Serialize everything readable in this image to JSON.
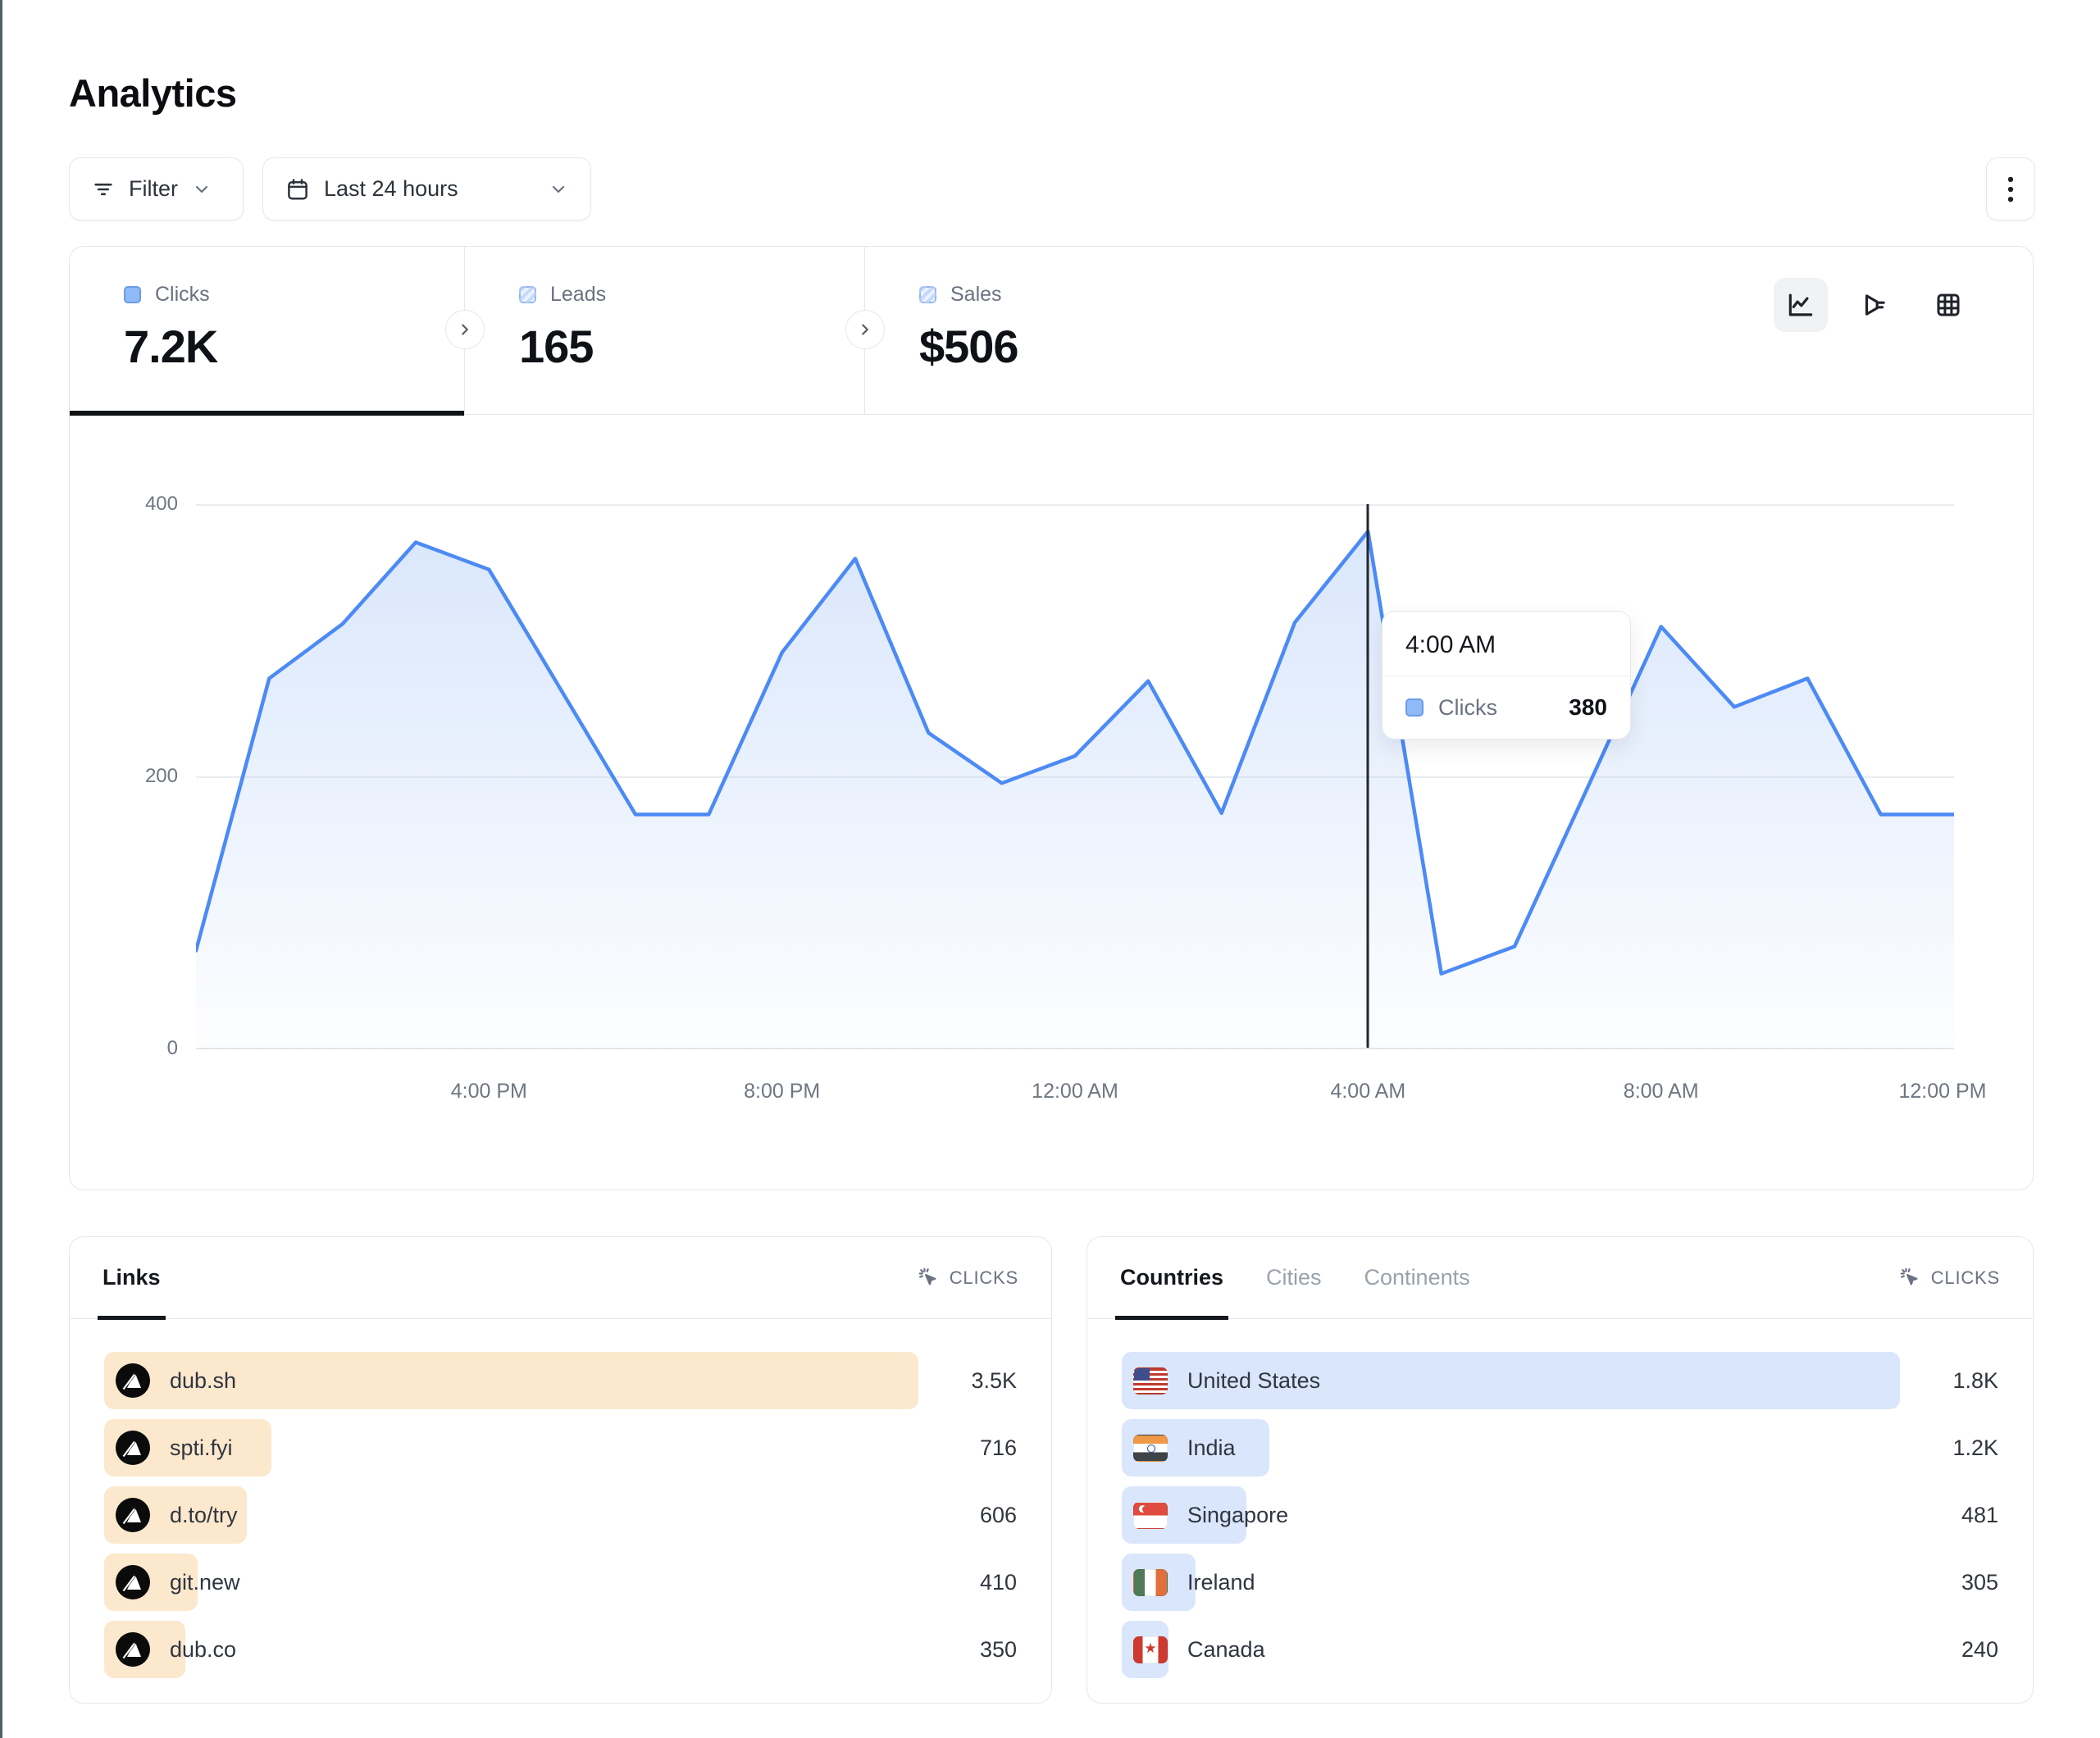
{
  "page": {
    "title": "Analytics"
  },
  "toolbar": {
    "filter_label": "Filter",
    "date_range_label": "Last 24 hours",
    "icons": [
      "filter-lines-icon",
      "calendar-icon",
      "chevron-down-icon",
      "kebab-menu-icon"
    ]
  },
  "stats": {
    "tabs": [
      {
        "label": "Clicks",
        "value": "7.2K",
        "active": true
      },
      {
        "label": "Leads",
        "value": "165",
        "active": false
      },
      {
        "label": "Sales",
        "value": "$506",
        "active": false
      }
    ]
  },
  "chart_toolbar": {
    "icons": [
      "line-chart-icon",
      "funnel-chart-icon",
      "table-grid-icon"
    ],
    "active": "line-chart-icon"
  },
  "chart_data": {
    "type": "area",
    "series_name": "Clicks",
    "x_hours": [
      "12:00 PM",
      "1:00 PM",
      "2:00 PM",
      "3:00 PM",
      "4:00 PM",
      "5:00 PM",
      "6:00 PM",
      "7:00 PM",
      "8:00 PM",
      "9:00 PM",
      "10:00 PM",
      "11:00 PM",
      "12:00 AM",
      "1:00 AM",
      "2:00 AM",
      "3:00 AM",
      "4:00 AM",
      "5:00 AM",
      "6:00 AM",
      "7:00 AM",
      "8:00 AM",
      "9:00 AM",
      "10:00 AM",
      "11:00 AM",
      "12:00 PM"
    ],
    "values": [
      72,
      272,
      312,
      372,
      352,
      262,
      172,
      172,
      291,
      360,
      232,
      195,
      215,
      270,
      173,
      313,
      380,
      55,
      75,
      192,
      310,
      251,
      272,
      172,
      172
    ],
    "ylim": [
      0,
      400
    ],
    "y_ticks": [
      0,
      200,
      400
    ],
    "x_tick_labels": [
      "4:00 PM",
      "8:00 PM",
      "12:00 AM",
      "4:00 AM",
      "8:00 AM",
      "12:00 PM"
    ],
    "highlight_index": 16,
    "grid": "horizontal",
    "legend": "none"
  },
  "tooltip": {
    "time": "4:00 AM",
    "series": "Clicks",
    "value": "380"
  },
  "links_panel": {
    "tab": "Links",
    "metric_label": "CLICKS",
    "rows": [
      {
        "label": "dub.sh",
        "value": "3.5K",
        "bar_pct": 100
      },
      {
        "label": "spti.fyi",
        "value": "716",
        "bar_pct": 20.5
      },
      {
        "label": "d.to/try",
        "value": "606",
        "bar_pct": 17.5
      },
      {
        "label": "git.new",
        "value": "410",
        "bar_pct": 11.5
      },
      {
        "label": "dub.co",
        "value": "350",
        "bar_pct": 10
      }
    ]
  },
  "countries_panel": {
    "tabs": [
      {
        "label": "Countries",
        "active": true
      },
      {
        "label": "Cities",
        "active": false
      },
      {
        "label": "Continents",
        "active": false
      }
    ],
    "metric_label": "CLICKS",
    "rows": [
      {
        "label": "United States",
        "value": "1.8K",
        "flag": "us",
        "bar_pct": 100
      },
      {
        "label": "India",
        "value": "1.2K",
        "flag": "in",
        "bar_pct": 19
      },
      {
        "label": "Singapore",
        "value": "481",
        "flag": "sg",
        "bar_pct": 16
      },
      {
        "label": "Ireland",
        "value": "305",
        "flag": "ie",
        "bar_pct": 9.5
      },
      {
        "label": "Canada",
        "value": "240",
        "flag": "ca",
        "bar_pct": 6
      }
    ]
  },
  "colors": {
    "accent_line_blue": "#4c8af5",
    "area_fill_top": "#bbd3f9",
    "links_bar": "#fce8cd",
    "countries_bar": "#d9e6fb",
    "legend_square_blue": "#8fbaf7",
    "active_underline": "#101316",
    "border": "#e5e7eb",
    "muted_text": "#6b7280",
    "window_left_edge": "#4d6166"
  }
}
